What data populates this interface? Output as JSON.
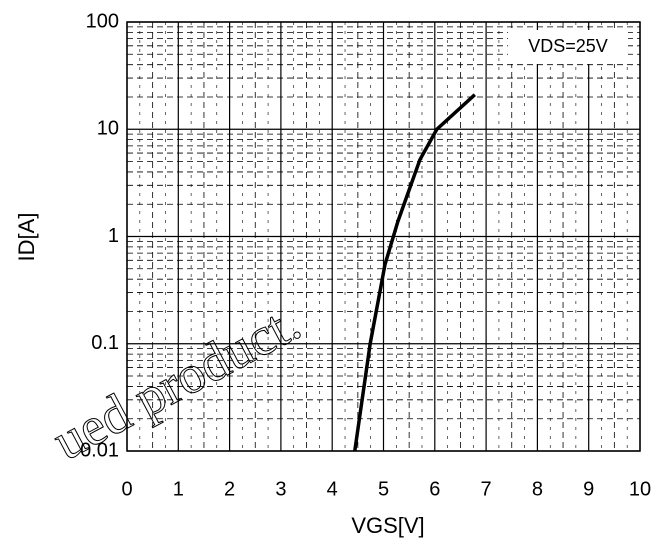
{
  "chart_data": {
    "type": "line",
    "xlabel": "VGS[V]",
    "ylabel": "ID[A]",
    "annotation": "VDS=25V",
    "watermark": "ued product.",
    "x": [
      4.44,
      4.74,
      5.03,
      5.28,
      5.71,
      6.04,
      6.78
    ],
    "series": [
      {
        "name": "ID",
        "color": "#000000",
        "values": [
          0.01,
          0.1,
          0.55,
          1.38,
          5.2,
          10,
          21
        ]
      }
    ],
    "xlim": [
      0,
      10
    ],
    "xticks": [
      0,
      1,
      2,
      3,
      4,
      5,
      6,
      7,
      8,
      9,
      10
    ],
    "ylim": [
      0.01,
      100
    ],
    "yticks": [
      0.01,
      0.1,
      1,
      10,
      100
    ],
    "ylog": true,
    "grid": true
  }
}
